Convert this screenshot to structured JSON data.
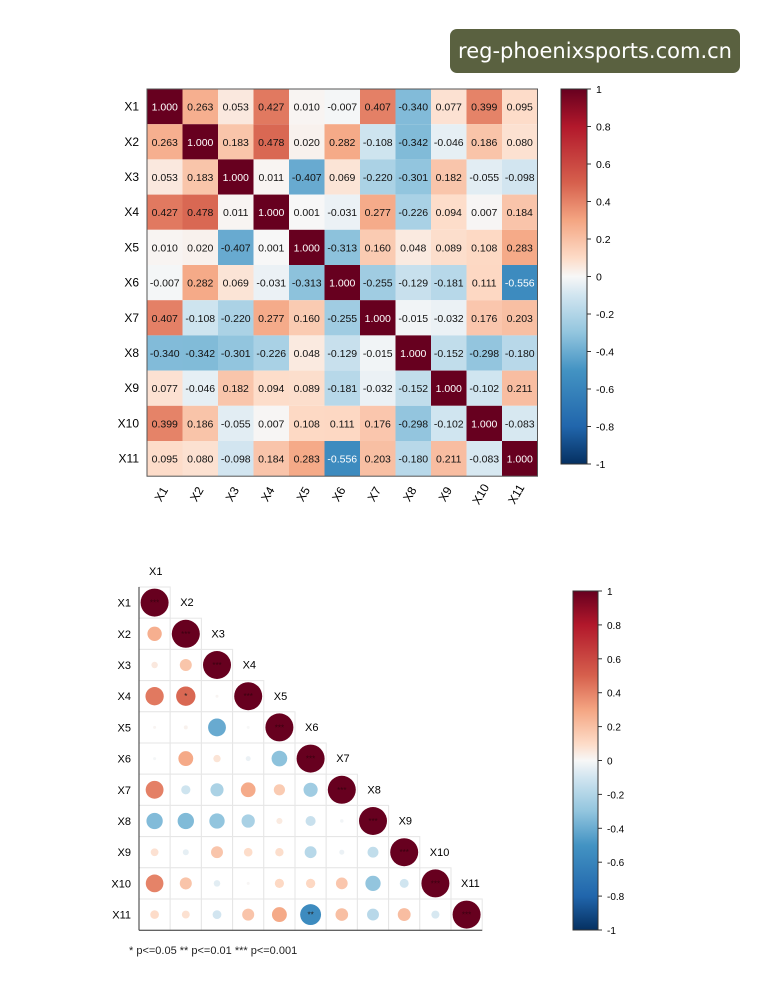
{
  "watermark": "reg-phoenixsports.com.cn",
  "footnote": "* p<=0.05  ** p<=0.01  *** p<=0.001",
  "chart_data": [
    {
      "type": "heatmap",
      "variables": [
        "X1",
        "X2",
        "X3",
        "X4",
        "X5",
        "X6",
        "X7",
        "X8",
        "X9",
        "X10",
        "X11"
      ],
      "matrix": [
        [
          1.0,
          0.263,
          0.053,
          0.427,
          0.01,
          -0.007,
          0.407,
          -0.34,
          0.077,
          0.399,
          0.095
        ],
        [
          0.263,
          1.0,
          0.183,
          0.478,
          0.02,
          0.282,
          -0.108,
          -0.342,
          -0.046,
          0.186,
          0.08
        ],
        [
          0.053,
          0.183,
          1.0,
          0.011,
          -0.407,
          0.069,
          -0.22,
          -0.301,
          0.182,
          -0.055,
          -0.098
        ],
        [
          0.427,
          0.478,
          0.011,
          1.0,
          0.001,
          -0.031,
          0.277,
          -0.226,
          0.094,
          0.007,
          0.184
        ],
        [
          0.01,
          0.02,
          -0.407,
          0.001,
          1.0,
          -0.313,
          0.16,
          0.048,
          0.089,
          0.108,
          0.283
        ],
        [
          -0.007,
          0.282,
          0.069,
          -0.031,
          -0.313,
          1.0,
          -0.255,
          -0.129,
          -0.181,
          0.111,
          -0.556
        ],
        [
          0.407,
          -0.108,
          -0.22,
          0.277,
          0.16,
          -0.255,
          1.0,
          -0.015,
          -0.032,
          0.176,
          0.203
        ],
        [
          -0.34,
          -0.342,
          -0.301,
          -0.226,
          0.048,
          -0.129,
          -0.015,
          1.0,
          -0.152,
          -0.298,
          -0.18
        ],
        [
          0.077,
          -0.046,
          0.182,
          0.094,
          0.089,
          -0.181,
          -0.032,
          -0.152,
          1.0,
          -0.102,
          0.211
        ],
        [
          0.399,
          0.186,
          -0.055,
          0.007,
          0.108,
          0.111,
          0.176,
          -0.298,
          -0.102,
          1.0,
          -0.083
        ],
        [
          0.095,
          0.08,
          -0.098,
          0.184,
          0.283,
          -0.556,
          0.203,
          -0.18,
          0.211,
          -0.083,
          1.0
        ]
      ],
      "color_range": [
        -1,
        1
      ],
      "colorbar_ticks": [
        "1",
        "0.8",
        "0.6",
        "0.4",
        "0.2",
        "0",
        "-0.2",
        "-0.4",
        "-0.6",
        "-0.8",
        "-1"
      ],
      "colormap": {
        "negative": "#053061",
        "neutral": "#f7f7f7",
        "positive": "#67001f"
      }
    },
    {
      "type": "heatmap",
      "style": "lower-triangle circles",
      "variables": [
        "X1",
        "X2",
        "X3",
        "X4",
        "X5",
        "X6",
        "X7",
        "X8",
        "X9",
        "X10",
        "X11"
      ],
      "significance": {
        "0-0": "***",
        "1-1": "***",
        "2-2": "***",
        "3-3": "***",
        "4-4": "***",
        "5-5": "***",
        "6-6": "***",
        "7-7": "***",
        "8-8": "***",
        "9-9": "***",
        "10-10": "***",
        "3-1": "*",
        "10-5": "**"
      },
      "colorbar_ticks": [
        "1",
        "0.8",
        "0.6",
        "0.4",
        "0.2",
        "0",
        "-0.2",
        "-0.4",
        "-0.6",
        "-0.8",
        "-1"
      ],
      "color_range": [
        -1,
        1
      ]
    }
  ]
}
